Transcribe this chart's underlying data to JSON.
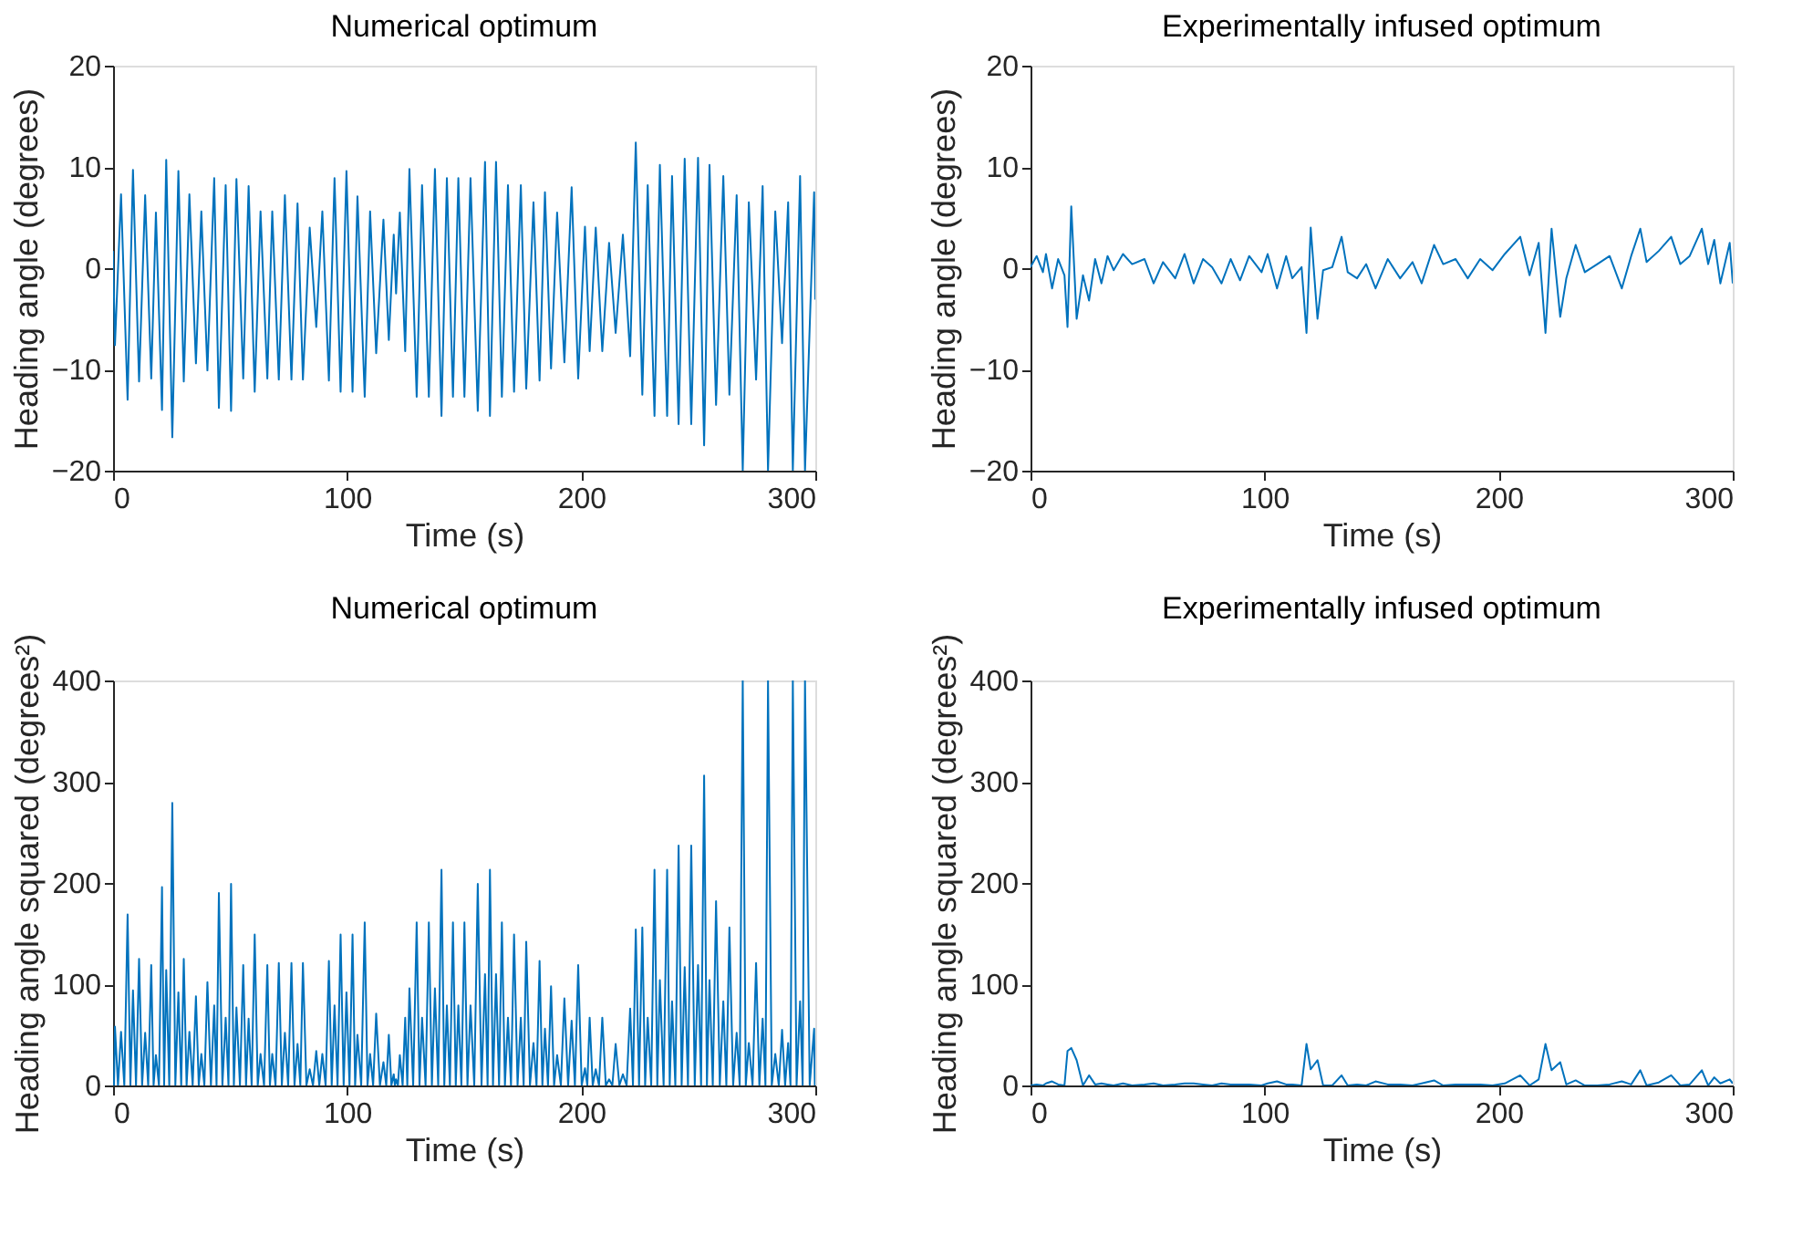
{
  "chart_data": [
    {
      "type": "line",
      "title": "Numerical optimum",
      "xlabel": "Time (s)",
      "ylabel": "Heading angle (degrees)",
      "xlim": [
        0,
        300
      ],
      "xticks": [
        0,
        100,
        200,
        300
      ],
      "ylim": [
        -20,
        20
      ],
      "yticks": [
        -20,
        -10,
        0,
        10,
        20
      ],
      "x": [
        0,
        0.8,
        3.4,
        6.2,
        8.5,
        11.1,
        13.7,
        16.3,
        18.3,
        20.9,
        22.7,
        25.3,
        27.9,
        30.2,
        32.6,
        35.4,
        37.7,
        40.3,
        43.2,
        45.2,
        48.1,
        50.4,
        52.7,
        55.6,
        57.9,
        60.5,
        63.0,
        65.9,
        68.0,
        70.8,
        73.4,
        76.2,
        78.8,
        81.1,
        84.0,
        86.8,
        89.4,
        92.2,
        94.6,
        97.2,
        99.7,
        102.3,
        104.4,
        107.5,
        109.8,
        112.4,
        115.5,
        117.8,
        119.9,
        120.9,
        122.5,
        124.8,
        126.6,
        129.7,
        132.0,
        134.9,
        137.5,
        140.3,
        142.6,
        145.2,
        147.5,
        150.1,
        152.7,
        155.8,
        158.9,
        161.0,
        163.6,
        166.1,
        168.7,
        171.3,
        174.2,
        176.5,
        179.6,
        182.2,
        184.5,
        187.1,
        189.7,
        192.8,
        195.9,
        198.7,
        201.6,
        203.6,
        206.2,
        209.0,
        211.9,
        214.7,
        217.8,
        220.9,
        223.3,
        226.1,
        228.4,
        231.3,
        233.6,
        236.7,
        238.8,
        241.6,
        244.2,
        247.0,
        249.9,
        252.5,
        254.8,
        257.6,
        260.7,
        263.3,
        266.4,
        269.0,
        271.6,
        274.7,
        277.5,
        279.8,
        282.9,
        285.8,
        288.4,
        290.4,
        293.5,
        295.6,
        299.5,
        300
      ],
      "series": [
        {
          "color": "#0072bd",
          "values": [
            1.7,
            -7.6,
            7.3,
            -13.0,
            9.7,
            -11.2,
            7.2,
            -10.9,
            5.5,
            -14.0,
            10.7,
            -16.7,
            9.6,
            -11.2,
            7.3,
            -9.4,
            5.6,
            -10.1,
            8.9,
            -13.8,
            8.2,
            -14.1,
            8.8,
            -10.9,
            8.1,
            -12.2,
            5.6,
            -10.9,
            5.6,
            -11.0,
            7.2,
            -11.0,
            6.4,
            -11.0,
            4.0,
            -5.8,
            5.6,
            -11.1,
            8.9,
            -12.2,
            9.6,
            -12.2,
            7.1,
            -12.7,
            5.6,
            -8.4,
            4.8,
            -7.1,
            3.3,
            -2.5,
            5.5,
            -8.2,
            9.8,
            -12.7,
            8.2,
            -12.7,
            9.8,
            -14.6,
            8.9,
            -12.7,
            8.9,
            -12.7,
            8.9,
            -14.1,
            10.5,
            -14.6,
            10.5,
            -12.7,
            8.2,
            -12.2,
            8.2,
            -11.9,
            6.5,
            -11.1,
            7.5,
            -9.9,
            5.5,
            -9.3,
            8.0,
            -10.9,
            4.1,
            -8.2,
            4.0,
            -8.2,
            2.5,
            -6.4,
            3.3,
            -8.7,
            12.4,
            -12.5,
            8.2,
            -14.6,
            10.2,
            -14.6,
            9.1,
            -15.4,
            10.8,
            -15.4,
            10.9,
            -17.5,
            10.2,
            -13.5,
            9.1,
            -12.5,
            7.2,
            -20,
            6.5,
            -11.0,
            8.1,
            -20,
            5.6,
            -7.4,
            6.5,
            -20,
            9.1,
            -20,
            7.5,
            -3.1
          ]
        }
      ]
    },
    {
      "type": "line",
      "title": "Experimentally infused optimum",
      "xlabel": "Time (s)",
      "ylabel": "Heading angle (degrees)",
      "xlim": [
        0,
        300
      ],
      "xticks": [
        0,
        100,
        200,
        300
      ],
      "ylim": [
        -20,
        20
      ],
      "yticks": [
        -20,
        -10,
        0,
        10,
        20
      ],
      "x": [
        0,
        2.6,
        5.3,
        6.6,
        9.2,
        11.8,
        14.5,
        15.8,
        17.4,
        19.7,
        22.4,
        25.0,
        27.6,
        30.3,
        32.9,
        35.5,
        39.5,
        43.4,
        48.7,
        52.6,
        56.6,
        61.8,
        65.8,
        69.7,
        73.7,
        77.6,
        81.6,
        85.5,
        89.5,
        93.4,
        98.7,
        101.3,
        105.3,
        109.2,
        111.8,
        115.8,
        117.9,
        119.7,
        122.6,
        125.0,
        128.9,
        132.9,
        135.5,
        139.5,
        143.4,
        147.4,
        152.6,
        157.9,
        163.2,
        167.1,
        172.4,
        176.3,
        181.6,
        186.8,
        192.1,
        197.4,
        202.6,
        209.2,
        213.2,
        217.1,
        220.0,
        222.6,
        226.3,
        228.9,
        232.9,
        236.8,
        242.1,
        247.4,
        252.6,
        256.6,
        260.5,
        263.2,
        268.4,
        273.7,
        277.6,
        281.6,
        286.8,
        289.5,
        292.1,
        294.7,
        298.7,
        300.0
      ],
      "series": [
        {
          "color": "#0072bd",
          "values": [
            0.1,
            1.2,
            -0.4,
            1.4,
            -2.0,
            0.9,
            -0.7,
            -5.8,
            6.1,
            -5.0,
            -0.7,
            -3.2,
            0.9,
            -1.5,
            1.2,
            -0.2,
            1.4,
            0.4,
            0.9,
            -1.5,
            0.6,
            -1.0,
            1.4,
            -1.5,
            0.9,
            0.1,
            -1.5,
            0.9,
            -1.2,
            1.2,
            -0.4,
            1.4,
            -2.0,
            1.2,
            -1.0,
            0.1,
            -6.4,
            4.0,
            -5.0,
            -0.2,
            0.1,
            3.1,
            -0.4,
            -1.0,
            0.4,
            -2.0,
            0.9,
            -1.0,
            0.6,
            -1.5,
            2.3,
            0.4,
            0.9,
            -1.0,
            0.9,
            -0.2,
            1.4,
            3.1,
            -0.7,
            2.5,
            -6.4,
            3.9,
            -4.8,
            -1.0,
            2.3,
            -0.4,
            0.4,
            1.2,
            -2.0,
            1.2,
            3.9,
            0.6,
            1.7,
            3.1,
            0.4,
            1.2,
            3.9,
            0.4,
            2.8,
            -1.5,
            2.5,
            -1.5
          ]
        }
      ]
    },
    {
      "type": "line",
      "title": "Numerical optimum",
      "xlabel": "Time (s)",
      "ylabel": "Heading angle squared (degrees²)",
      "xlim": [
        0,
        300
      ],
      "xticks": [
        0,
        100,
        200,
        300
      ],
      "ylim": [
        0,
        400
      ],
      "yticks": [
        0,
        100,
        200,
        300,
        400
      ],
      "x": [
        0,
        0.4,
        0.8,
        2.1,
        3.4,
        4.8,
        6.2,
        7.4,
        8.5,
        9.8,
        11.1,
        12.4,
        13.7,
        15.0,
        16.3,
        17.3,
        18.3,
        19.6,
        20.9,
        21.8,
        22.7,
        24.0,
        25.3,
        26.6,
        27.9,
        29.1,
        30.2,
        31.4,
        32.6,
        34.0,
        35.4,
        36.6,
        37.7,
        39.0,
        40.3,
        41.8,
        43.2,
        44.2,
        45.2,
        46.7,
        48.1,
        49.3,
        50.4,
        51.6,
        52.7,
        54.2,
        55.6,
        56.8,
        57.9,
        59.2,
        60.5,
        61.8,
        63.0,
        64.5,
        65.9,
        67.0,
        68.0,
        69.4,
        70.8,
        72.1,
        73.4,
        74.8,
        76.2,
        77.5,
        78.8,
        80.0,
        81.1,
        82.6,
        84.0,
        85.4,
        86.8,
        88.1,
        89.4,
        90.8,
        92.2,
        93.4,
        94.6,
        95.9,
        97.2,
        98.5,
        99.7,
        101.0,
        102.3,
        103.4,
        104.4,
        106.0,
        107.5,
        108.7,
        109.8,
        111.1,
        112.4,
        114.0,
        115.5,
        116.7,
        117.8,
        118.9,
        119.9,
        120.4,
        120.9,
        121.7,
        122.5,
        123.7,
        124.8,
        125.7,
        126.6,
        128.2,
        129.7,
        130.9,
        132.0,
        133.5,
        134.9,
        136.2,
        137.5,
        138.9,
        140.3,
        141.5,
        142.6,
        143.9,
        145.2,
        146.4,
        147.5,
        148.8,
        150.1,
        151.4,
        152.7,
        154.3,
        155.8,
        157.4,
        158.9,
        160.0,
        161.0,
        162.3,
        163.6,
        164.9,
        166.1,
        167.4,
        168.7,
        170.0,
        171.3,
        172.8,
        174.2,
        175.4,
        176.5,
        178.1,
        179.6,
        180.9,
        182.2,
        183.4,
        184.5,
        185.8,
        187.1,
        188.4,
        189.7,
        191.3,
        192.8,
        194.4,
        195.9,
        197.3,
        198.7,
        200.2,
        201.6,
        202.6,
        203.6,
        204.9,
        206.2,
        207.6,
        209.0,
        210.5,
        211.9,
        213.3,
        214.7,
        216.3,
        217.8,
        219.4,
        220.9,
        222.1,
        223.3,
        224.7,
        226.1,
        227.3,
        228.4,
        229.9,
        231.3,
        232.5,
        233.6,
        235.2,
        236.7,
        237.8,
        238.8,
        240.2,
        241.6,
        242.9,
        244.2,
        245.6,
        247.0,
        248.5,
        249.9,
        251.2,
        252.5,
        253.7,
        254.8,
        256.2,
        257.6,
        259.2,
        260.7,
        262.0,
        263.3,
        264.9,
        266.4,
        267.7,
        269.0,
        270.3,
        271.6,
        273.2,
        274.7,
        276.1,
        277.5,
        278.7,
        279.8,
        281.4,
        282.9,
        284.4,
        285.8,
        287.1,
        288.4,
        289.4,
        290.4,
        292.0,
        293.5,
        294.6,
        295.6,
        297.6,
        299.5,
        299.8,
        300
      ],
      "series": [
        {
          "color": "#0072bd",
          "values": [
            3,
            0,
            58,
            0,
            53,
            0,
            169,
            0,
            94,
            0,
            125,
            0,
            52,
            0,
            119,
            0,
            30,
            0,
            196,
            0,
            114,
            0,
            279,
            0,
            92,
            0,
            125,
            0,
            53,
            0,
            88,
            0,
            31,
            0,
            102,
            0,
            79,
            0,
            190,
            0,
            67,
            0,
            199,
            0,
            77,
            0,
            119,
            0,
            66,
            0,
            149,
            0,
            31,
            0,
            119,
            0,
            31,
            0,
            121,
            0,
            52,
            0,
            121,
            0,
            41,
            0,
            121,
            0,
            16,
            0,
            34,
            0,
            31,
            0,
            123,
            0,
            79,
            0,
            149,
            0,
            92,
            0,
            149,
            0,
            50,
            0,
            161,
            0,
            31,
            0,
            71,
            0,
            23,
            0,
            50,
            0,
            11,
            0,
            6,
            0,
            30,
            0,
            67,
            0,
            96,
            0,
            161,
            0,
            67,
            0,
            161,
            0,
            96,
            0,
            213,
            0,
            79,
            0,
            161,
            0,
            79,
            0,
            161,
            0,
            79,
            0,
            199,
            0,
            110,
            0,
            213,
            0,
            110,
            0,
            161,
            0,
            67,
            0,
            149,
            0,
            67,
            0,
            142,
            0,
            42,
            0,
            123,
            0,
            56,
            0,
            98,
            0,
            30,
            0,
            86,
            0,
            64,
            0,
            119,
            0,
            17,
            0,
            67,
            0,
            16,
            0,
            67,
            0,
            6,
            0,
            41,
            0,
            11,
            0,
            76,
            0,
            154,
            0,
            156,
            0,
            67,
            0,
            213,
            0,
            104,
            0,
            213,
            0,
            83,
            0,
            237,
            0,
            117,
            0,
            237,
            0,
            119,
            0,
            306,
            0,
            104,
            0,
            182,
            0,
            83,
            0,
            156,
            0,
            52,
            0,
            400,
            0,
            42,
            0,
            121,
            0,
            66,
            0,
            400,
            0,
            31,
            0,
            55,
            0,
            42,
            0,
            400,
            0,
            83,
            0,
            400,
            0,
            56,
            0,
            10
          ]
        }
      ]
    },
    {
      "type": "line",
      "title": "Experimentally infused optimum",
      "xlabel": "Time (s)",
      "ylabel": "Heading angle squared (degrees²)",
      "xlim": [
        0,
        300
      ],
      "xticks": [
        0,
        100,
        200,
        300
      ],
      "ylim": [
        0,
        400
      ],
      "yticks": [
        0,
        100,
        200,
        300,
        400
      ],
      "x": [
        0,
        2.6,
        5.3,
        6.6,
        9.2,
        11.8,
        14.5,
        15.8,
        17.4,
        19.7,
        22.4,
        25.0,
        27.6,
        30.3,
        32.9,
        35.5,
        39.5,
        43.4,
        48.7,
        52.6,
        56.6,
        61.8,
        65.8,
        69.7,
        73.7,
        77.6,
        81.6,
        85.5,
        89.5,
        93.4,
        98.7,
        101.3,
        105.3,
        109.2,
        111.8,
        115.8,
        117.9,
        119.7,
        122.6,
        125.0,
        128.9,
        132.9,
        135.5,
        139.5,
        143.4,
        147.4,
        152.6,
        157.9,
        163.2,
        167.1,
        172.4,
        176.3,
        181.6,
        186.8,
        192.1,
        197.4,
        202.6,
        209.2,
        213.2,
        217.1,
        220.0,
        222.6,
        226.3,
        228.9,
        232.9,
        236.8,
        242.1,
        247.4,
        252.6,
        256.6,
        260.5,
        263.2,
        268.4,
        273.7,
        277.6,
        281.6,
        286.8,
        289.5,
        292.1,
        294.7,
        298.7,
        300.0
      ],
      "series": [
        {
          "color": "#0072bd",
          "values": [
            0,
            1,
            0,
            2,
            4,
            1,
            0,
            34,
            37,
            25,
            0,
            10,
            1,
            2,
            1,
            0,
            2,
            0,
            1,
            2,
            0,
            1,
            2,
            2,
            1,
            0,
            2,
            1,
            1,
            1,
            0,
            2,
            4,
            1,
            1,
            0,
            41,
            16,
            25,
            0,
            0,
            10,
            0,
            1,
            0,
            4,
            1,
            1,
            0,
            2,
            5,
            0,
            1,
            1,
            1,
            0,
            2,
            10,
            0,
            6,
            41,
            15,
            23,
            1,
            5,
            0,
            0,
            1,
            4,
            1,
            15,
            0,
            3,
            10,
            0,
            1,
            15,
            0,
            8,
            2,
            6,
            2
          ]
        }
      ]
    }
  ]
}
